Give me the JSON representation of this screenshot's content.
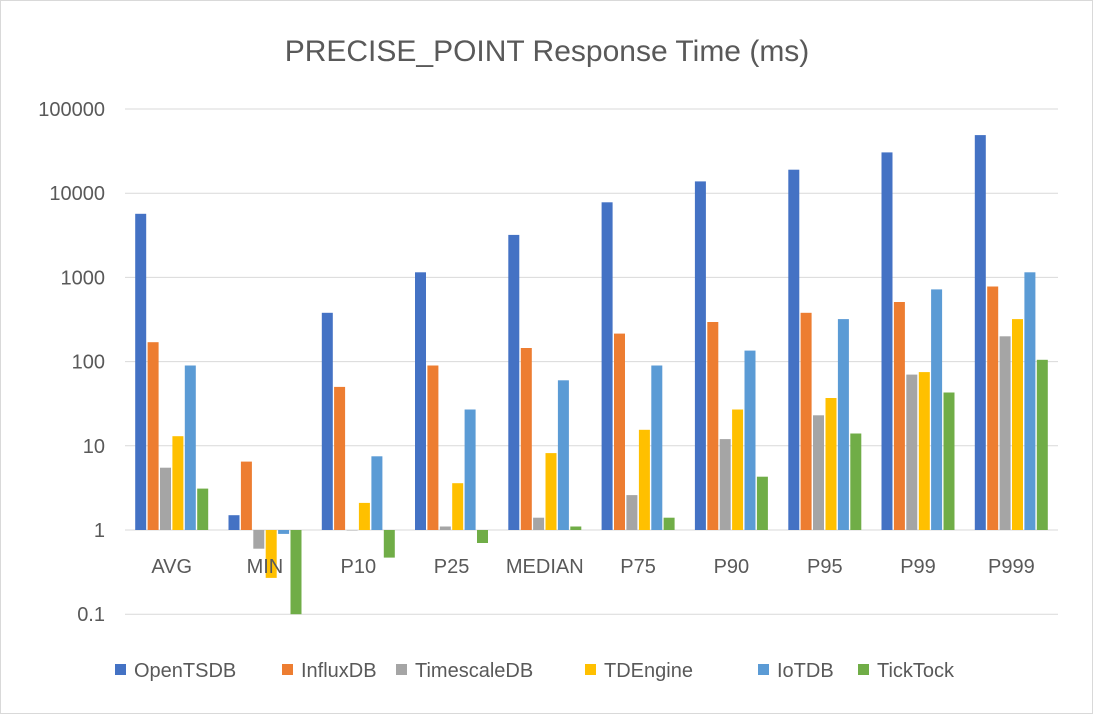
{
  "chart_data": {
    "type": "bar",
    "title": "PRECISE_POINT Response Time (ms)",
    "xlabel": "",
    "ylabel": "",
    "y_scale": "log",
    "ylim": [
      0.1,
      100000
    ],
    "y_ticks": [
      "0.1",
      "1",
      "10",
      "100",
      "1000",
      "10000",
      "100000"
    ],
    "grid": "horizontal",
    "legend_position": "bottom",
    "categories": [
      "AVG",
      "MIN",
      "P10",
      "P25",
      "MEDIAN",
      "P75",
      "P90",
      "P95",
      "P99",
      "P999"
    ],
    "series": [
      {
        "name": "OpenTSDB",
        "color": "#4472c4",
        "values": [
          5700,
          1.5,
          380,
          1150,
          3200,
          7800,
          13800,
          19000,
          30500,
          49000
        ]
      },
      {
        "name": "InfluxDB",
        "color": "#ed7d31",
        "values": [
          170,
          6.5,
          50,
          90,
          145,
          215,
          295,
          380,
          510,
          780
        ]
      },
      {
        "name": "TimescaleDB",
        "color": "#a5a5a5",
        "values": [
          5.5,
          0.6,
          1,
          1.1,
          1.4,
          2.6,
          12,
          23,
          70,
          200
        ]
      },
      {
        "name": "TDEngine",
        "color": "#ffc000",
        "values": [
          13,
          0.27,
          2.1,
          3.6,
          8.2,
          15.5,
          27,
          37,
          75,
          320
        ]
      },
      {
        "name": "IoTDB",
        "color": "#5b9bd5",
        "values": [
          90,
          0.9,
          7.5,
          27,
          60,
          90,
          135,
          320,
          720,
          1150
        ]
      },
      {
        "name": "TickTock",
        "color": "#70ad47",
        "values": [
          3.1,
          0.1,
          0.47,
          0.7,
          1.1,
          1.4,
          4.3,
          14,
          43,
          105
        ]
      }
    ]
  }
}
